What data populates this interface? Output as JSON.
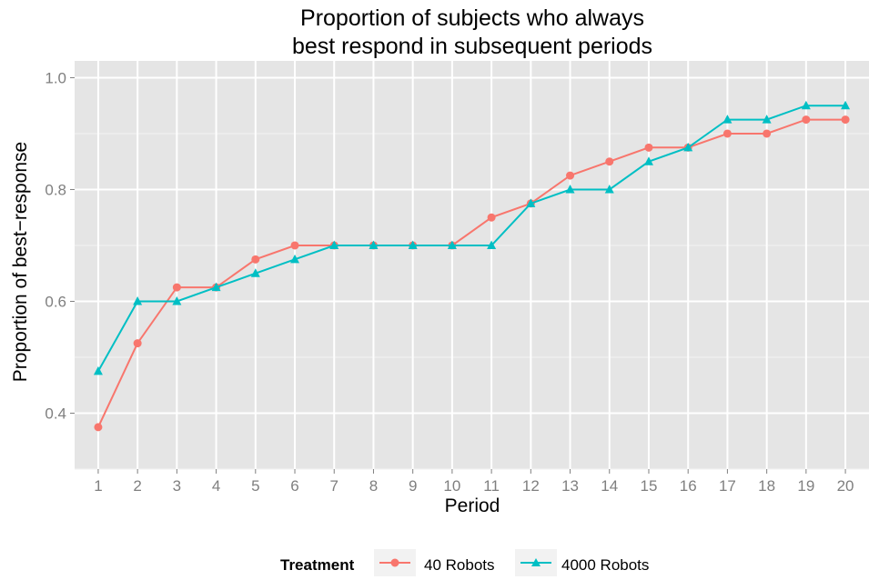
{
  "chart_data": {
    "type": "line",
    "title_lines": [
      "Proportion of subjects who always",
      "best respond in subsequent periods"
    ],
    "xlabel": "Period",
    "ylabel": "Proportion of best−response",
    "categories": [
      "1",
      "2",
      "3",
      "4",
      "5",
      "6",
      "7",
      "8",
      "9",
      "10",
      "11",
      "12",
      "13",
      "14",
      "15",
      "16",
      "17",
      "18",
      "19",
      "20"
    ],
    "ylim": [
      0.3,
      1.03
    ],
    "yticks": [
      0.4,
      0.6,
      0.8,
      1.0
    ],
    "ytick_labels": [
      "0.4",
      "0.6",
      "0.8",
      "1.0"
    ],
    "grid": true,
    "background": "#e5e5e5",
    "legend": {
      "title": "Treatment",
      "position": "bottom"
    },
    "series": [
      {
        "name": "40 Robots",
        "color": "#f8766d",
        "marker": "circle",
        "values": [
          0.375,
          0.525,
          0.625,
          0.625,
          0.675,
          0.7,
          0.7,
          0.7,
          0.7,
          0.7,
          0.75,
          0.775,
          0.825,
          0.85,
          0.875,
          0.875,
          0.9,
          0.9,
          0.925,
          0.925
        ]
      },
      {
        "name": "4000 Robots",
        "color": "#00bfc4",
        "marker": "triangle",
        "values": [
          0.475,
          0.6,
          0.6,
          0.625,
          0.65,
          0.675,
          0.7,
          0.7,
          0.7,
          0.7,
          0.7,
          0.775,
          0.8,
          0.8,
          0.85,
          0.875,
          0.925,
          0.925,
          0.95,
          0.95
        ]
      }
    ]
  }
}
